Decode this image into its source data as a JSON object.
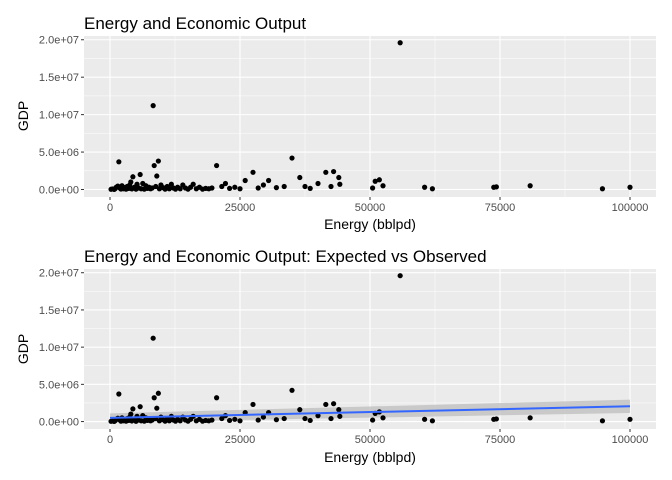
{
  "chart_data": [
    {
      "type": "scatter",
      "title": "Energy and Economic Output",
      "xlabel": "Energy (bblpd)",
      "ylabel": "GDP",
      "xlim": [
        -5000,
        105000
      ],
      "ylim": [
        -1000000,
        20500000
      ],
      "x_ticks": [
        0,
        25000,
        50000,
        75000,
        100000
      ],
      "x_tick_labels": [
        "0",
        "25000",
        "50000",
        "75000",
        "100000"
      ],
      "y_ticks": [
        0,
        5000000,
        10000000,
        15000000,
        20000000
      ],
      "y_tick_labels": [
        "0.0e+00",
        "5.0e+06",
        "1.0e+07",
        "1.5e+07",
        "2.0e+07"
      ],
      "grid": true,
      "points": [
        [
          200,
          30000
        ],
        [
          500,
          80000
        ],
        [
          800,
          15000
        ],
        [
          1000,
          120000
        ],
        [
          1200,
          300000
        ],
        [
          1500,
          450000
        ],
        [
          1700,
          3700000
        ],
        [
          1900,
          200000
        ],
        [
          2100,
          60000
        ],
        [
          2300,
          500000
        ],
        [
          2600,
          100000
        ],
        [
          2800,
          250000
        ],
        [
          3100,
          50000
        ],
        [
          3300,
          400000
        ],
        [
          3600,
          150000
        ],
        [
          3800,
          600000
        ],
        [
          4000,
          1000000
        ],
        [
          4200,
          80000
        ],
        [
          4400,
          1700000
        ],
        [
          4700,
          300000
        ],
        [
          5000,
          40000
        ],
        [
          5200,
          700000
        ],
        [
          5500,
          200000
        ],
        [
          5800,
          2000000
        ],
        [
          6000,
          100000
        ],
        [
          6300,
          800000
        ],
        [
          6600,
          50000
        ],
        [
          6900,
          500000
        ],
        [
          7200,
          150000
        ],
        [
          7500,
          300000
        ],
        [
          7800,
          100000
        ],
        [
          8100,
          200000
        ],
        [
          8300,
          11200000
        ],
        [
          8500,
          3200000
        ],
        [
          8800,
          400000
        ],
        [
          9000,
          1800000
        ],
        [
          9300,
          3800000
        ],
        [
          9500,
          100000
        ],
        [
          9800,
          600000
        ],
        [
          10200,
          250000
        ],
        [
          10600,
          50000
        ],
        [
          11000,
          400000
        ],
        [
          11400,
          100000
        ],
        [
          11800,
          700000
        ],
        [
          12200,
          200000
        ],
        [
          12600,
          50000
        ],
        [
          13000,
          300000
        ],
        [
          13500,
          100000
        ],
        [
          14000,
          600000
        ],
        [
          14500,
          200000
        ],
        [
          15000,
          50000
        ],
        [
          15500,
          300000
        ],
        [
          16000,
          700000
        ],
        [
          16600,
          100000
        ],
        [
          17200,
          300000
        ],
        [
          17800,
          50000
        ],
        [
          18400,
          150000
        ],
        [
          19000,
          100000
        ],
        [
          19600,
          200000
        ],
        [
          20500,
          3200000
        ],
        [
          21500,
          400000
        ],
        [
          22200,
          800000
        ],
        [
          23000,
          150000
        ],
        [
          24000,
          300000
        ],
        [
          25000,
          100000
        ],
        [
          26000,
          1200000
        ],
        [
          27500,
          2300000
        ],
        [
          28500,
          200000
        ],
        [
          29500,
          600000
        ],
        [
          30500,
          1200000
        ],
        [
          32000,
          250000
        ],
        [
          33500,
          400000
        ],
        [
          35000,
          4200000
        ],
        [
          36500,
          1600000
        ],
        [
          37500,
          400000
        ],
        [
          38500,
          150000
        ],
        [
          40000,
          800000
        ],
        [
          41500,
          2300000
        ],
        [
          42500,
          400000
        ],
        [
          43000,
          2400000
        ],
        [
          44000,
          1600000
        ],
        [
          44200,
          700000
        ],
        [
          50500,
          200000
        ],
        [
          51000,
          1100000
        ],
        [
          51800,
          1300000
        ],
        [
          52500,
          500000
        ],
        [
          55800,
          19600000
        ],
        [
          60500,
          300000
        ],
        [
          62000,
          100000
        ],
        [
          73800,
          300000
        ],
        [
          74300,
          350000
        ],
        [
          80800,
          500000
        ],
        [
          94700,
          100000
        ],
        [
          100000,
          300000
        ]
      ]
    },
    {
      "type": "scatter",
      "title": "Energy and Economic Output: Expected vs Observed",
      "xlabel": "Energy (bblpd)",
      "ylabel": "GDP",
      "xlim": [
        -5000,
        105000
      ],
      "ylim": [
        -1000000,
        20500000
      ],
      "x_ticks": [
        0,
        25000,
        50000,
        75000,
        100000
      ],
      "x_tick_labels": [
        "0",
        "25000",
        "50000",
        "75000",
        "100000"
      ],
      "y_ticks": [
        0,
        5000000,
        10000000,
        15000000,
        20000000
      ],
      "y_tick_labels": [
        "0.0e+00",
        "5.0e+06",
        "1.0e+07",
        "1.5e+07",
        "2.0e+07"
      ],
      "grid": true,
      "points": [
        [
          200,
          30000
        ],
        [
          500,
          80000
        ],
        [
          800,
          15000
        ],
        [
          1000,
          120000
        ],
        [
          1200,
          300000
        ],
        [
          1500,
          450000
        ],
        [
          1700,
          3700000
        ],
        [
          1900,
          200000
        ],
        [
          2100,
          60000
        ],
        [
          2300,
          500000
        ],
        [
          2600,
          100000
        ],
        [
          2800,
          250000
        ],
        [
          3100,
          50000
        ],
        [
          3300,
          400000
        ],
        [
          3600,
          150000
        ],
        [
          3800,
          600000
        ],
        [
          4000,
          1000000
        ],
        [
          4200,
          80000
        ],
        [
          4400,
          1700000
        ],
        [
          4700,
          300000
        ],
        [
          5000,
          40000
        ],
        [
          5200,
          700000
        ],
        [
          5500,
          200000
        ],
        [
          5800,
          2000000
        ],
        [
          6000,
          100000
        ],
        [
          6300,
          800000
        ],
        [
          6600,
          50000
        ],
        [
          6900,
          500000
        ],
        [
          7200,
          150000
        ],
        [
          7500,
          300000
        ],
        [
          7800,
          100000
        ],
        [
          8100,
          200000
        ],
        [
          8300,
          11200000
        ],
        [
          8500,
          3200000
        ],
        [
          8800,
          400000
        ],
        [
          9000,
          1800000
        ],
        [
          9300,
          3800000
        ],
        [
          9500,
          100000
        ],
        [
          9800,
          600000
        ],
        [
          10200,
          250000
        ],
        [
          10600,
          50000
        ],
        [
          11000,
          400000
        ],
        [
          11400,
          100000
        ],
        [
          11800,
          700000
        ],
        [
          12200,
          200000
        ],
        [
          12600,
          50000
        ],
        [
          13000,
          300000
        ],
        [
          13500,
          100000
        ],
        [
          14000,
          600000
        ],
        [
          14500,
          200000
        ],
        [
          15000,
          50000
        ],
        [
          15500,
          300000
        ],
        [
          16000,
          700000
        ],
        [
          16600,
          100000
        ],
        [
          17200,
          300000
        ],
        [
          17800,
          50000
        ],
        [
          18400,
          150000
        ],
        [
          19000,
          100000
        ],
        [
          19600,
          200000
        ],
        [
          20500,
          3200000
        ],
        [
          21500,
          400000
        ],
        [
          22200,
          800000
        ],
        [
          23000,
          150000
        ],
        [
          24000,
          300000
        ],
        [
          25000,
          100000
        ],
        [
          26000,
          1200000
        ],
        [
          27500,
          2300000
        ],
        [
          28500,
          200000
        ],
        [
          29500,
          600000
        ],
        [
          30500,
          1200000
        ],
        [
          32000,
          250000
        ],
        [
          33500,
          400000
        ],
        [
          35000,
          4200000
        ],
        [
          36500,
          1600000
        ],
        [
          37500,
          400000
        ],
        [
          38500,
          150000
        ],
        [
          40000,
          800000
        ],
        [
          41500,
          2300000
        ],
        [
          42500,
          400000
        ],
        [
          43000,
          2400000
        ],
        [
          44000,
          1600000
        ],
        [
          44200,
          700000
        ],
        [
          50500,
          200000
        ],
        [
          51000,
          1100000
        ],
        [
          51800,
          1300000
        ],
        [
          52500,
          500000
        ],
        [
          55800,
          19600000
        ],
        [
          60500,
          300000
        ],
        [
          62000,
          100000
        ],
        [
          73800,
          300000
        ],
        [
          74300,
          350000
        ],
        [
          80800,
          500000
        ],
        [
          94700,
          100000
        ],
        [
          100000,
          300000
        ]
      ],
      "trend_line": {
        "method": "linear",
        "color": "#3366FF",
        "x": [
          0,
          100000
        ],
        "y": [
          500000,
          2050000
        ],
        "band_color": "#BDBDBD",
        "band_lower": [
          -100000,
          1150000
        ],
        "band_upper": [
          1100000,
          2950000
        ]
      }
    }
  ],
  "colors": {
    "panel_background": "#EBEBEB",
    "grid_major": "#FFFFFF",
    "point": "#000000"
  }
}
